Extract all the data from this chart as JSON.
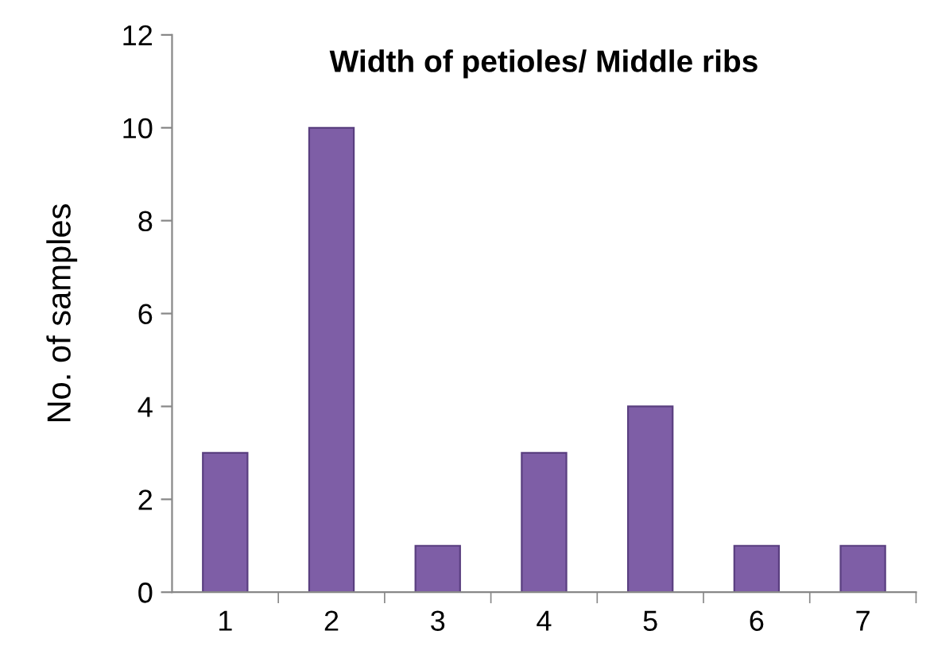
{
  "chart_data": {
    "type": "bar",
    "title": "Width of petioles/ Middle ribs",
    "ylabel": "No. of samples",
    "categories": [
      "1",
      "2",
      "3",
      "4",
      "5",
      "6",
      "7"
    ],
    "values": [
      3,
      10,
      1,
      3,
      4,
      1,
      1
    ],
    "color": "#7e5ea6",
    "ylim": [
      0,
      12
    ],
    "yticks": [
      0,
      2,
      4,
      6,
      8,
      10,
      12
    ],
    "grid": false,
    "legend": false
  }
}
